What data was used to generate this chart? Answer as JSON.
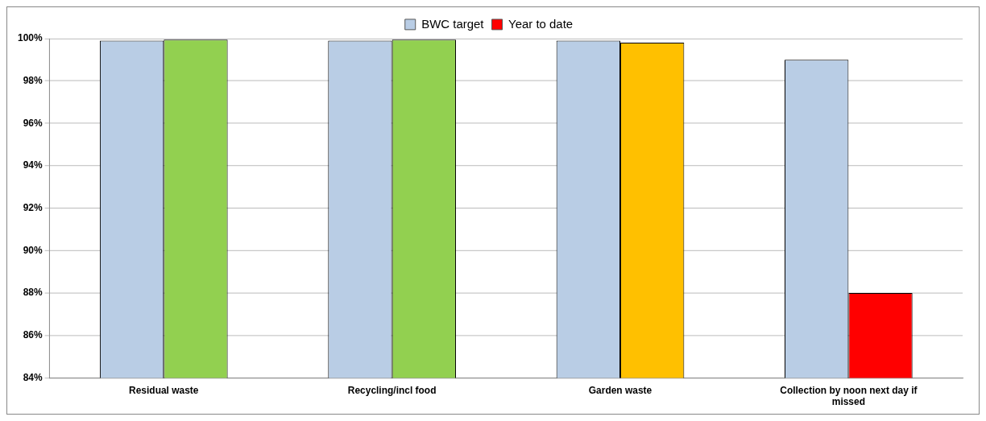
{
  "chart_data": {
    "type": "bar",
    "categories": [
      "Residual waste",
      "Recycling/incl food",
      "Garden waste",
      "Collection by noon next day if missed"
    ],
    "series": [
      {
        "name": "BWC target",
        "color": "#b9cde5",
        "values": [
          99.9,
          99.9,
          99.9,
          99
        ]
      },
      {
        "name": "Year to date",
        "color": "#ff0000",
        "colors": [
          "#92d050",
          "#92d050",
          "#ffc000",
          "#ff0000"
        ],
        "values": [
          99.95,
          99.95,
          99.8,
          88
        ]
      }
    ],
    "ylim": [
      84,
      100
    ],
    "yticks": [
      {
        "value": 84,
        "label": "84%"
      },
      {
        "value": 86,
        "label": "86%"
      },
      {
        "value": 88,
        "label": "88%"
      },
      {
        "value": 90,
        "label": "90%"
      },
      {
        "value": 92,
        "label": "92%"
      },
      {
        "value": 94,
        "label": "94%"
      },
      {
        "value": 96,
        "label": "96%"
      },
      {
        "value": 98,
        "label": "98%"
      },
      {
        "value": 100,
        "label": "100%"
      }
    ],
    "grid": "y",
    "legend": "top"
  }
}
